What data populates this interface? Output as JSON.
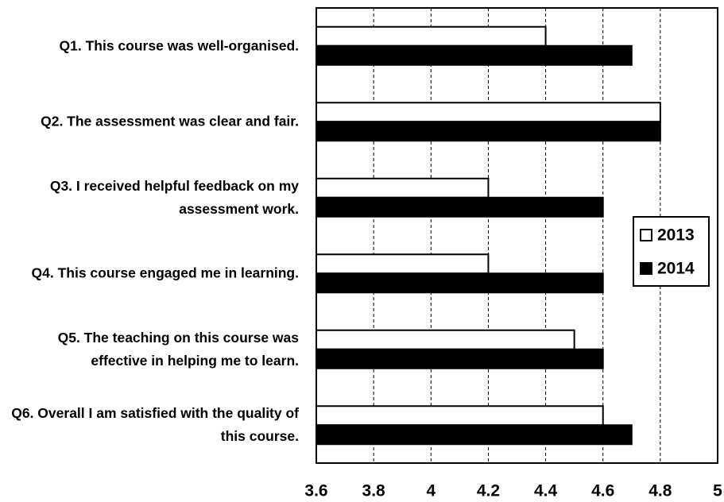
{
  "chart_data": {
    "type": "hbar",
    "categories": [
      "Q1. This course was well-organised.",
      "Q2. The assessment was clear and fair.",
      "Q3. I received helpful feedback on my assessment work.",
      "Q4. This course engaged me in learning.",
      "Q5. The teaching on this course was effective in helping me to learn.",
      "Q6. Overall I am satisfied with the quality of this course."
    ],
    "series": [
      {
        "name": "2013",
        "color": "#ffffff",
        "values": [
          4.4,
          4.8,
          4.2,
          4.2,
          4.5,
          4.6
        ]
      },
      {
        "name": "2014",
        "color": "#000000",
        "values": [
          4.7,
          4.8,
          4.6,
          4.6,
          4.6,
          4.7
        ]
      }
    ],
    "xlim": [
      3.6,
      5
    ],
    "xticks": [
      3.6,
      3.8,
      4,
      4.2,
      4.4,
      4.6,
      4.8,
      5
    ],
    "grid": true,
    "legend": "right"
  }
}
